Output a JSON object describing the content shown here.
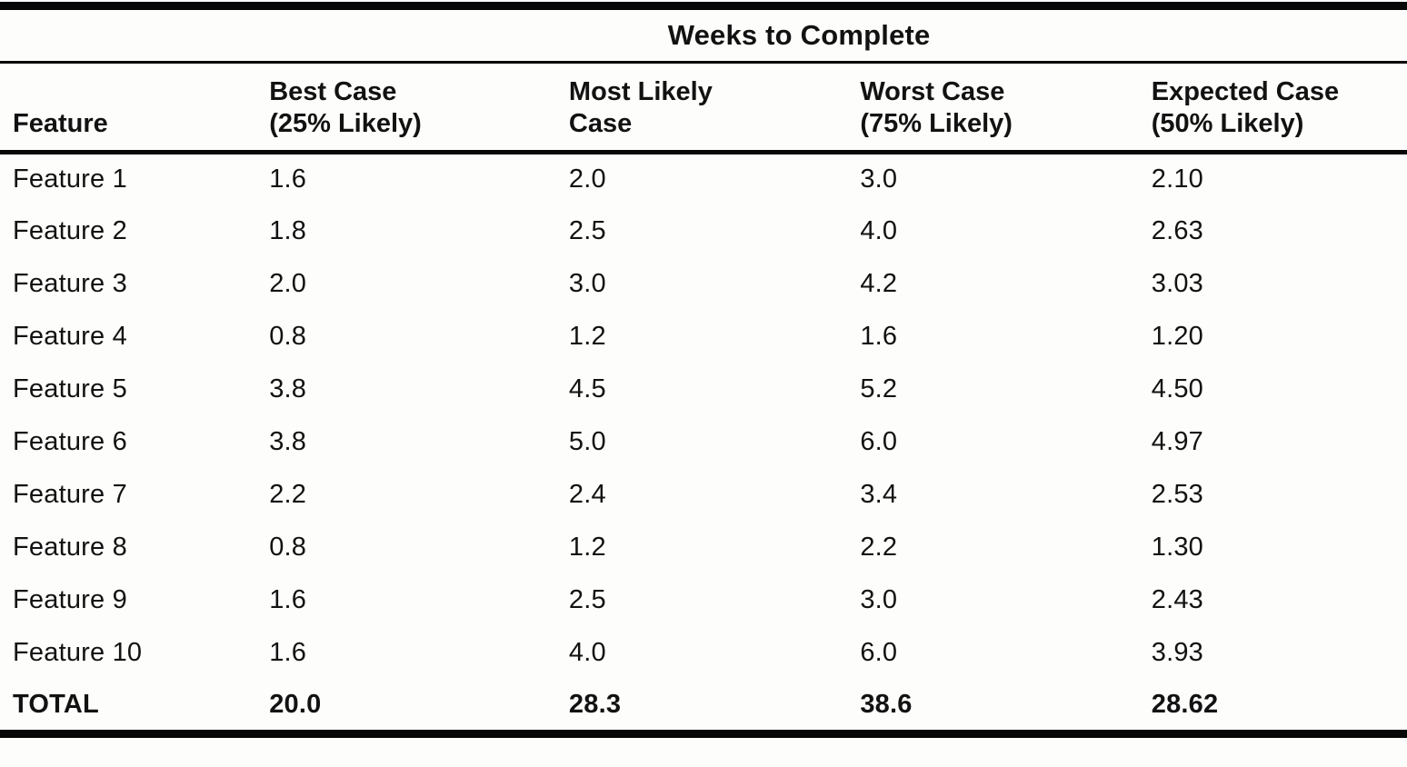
{
  "chart_data": {
    "type": "table",
    "title": "Weeks to Complete",
    "columns": [
      {
        "label": "Feature",
        "sub": ""
      },
      {
        "label": "Best Case",
        "sub": "(25% Likely)"
      },
      {
        "label": "Most Likely",
        "sub": "Case"
      },
      {
        "label": "Worst Case",
        "sub": "(75% Likely)"
      },
      {
        "label": "Expected Case",
        "sub": "(50% Likely)"
      }
    ],
    "rows": [
      [
        "Feature 1",
        "1.6",
        "2.0",
        "3.0",
        "2.10"
      ],
      [
        "Feature 2",
        "1.8",
        "2.5",
        "4.0",
        "2.63"
      ],
      [
        "Feature 3",
        "2.0",
        "3.0",
        "4.2",
        "3.03"
      ],
      [
        "Feature 4",
        "0.8",
        "1.2",
        "1.6",
        "1.20"
      ],
      [
        "Feature 5",
        "3.8",
        "4.5",
        "5.2",
        "4.50"
      ],
      [
        "Feature 6",
        "3.8",
        "5.0",
        "6.0",
        "4.97"
      ],
      [
        "Feature 7",
        "2.2",
        "2.4",
        "3.4",
        "2.53"
      ],
      [
        "Feature 8",
        "0.8",
        "1.2",
        "2.2",
        "1.30"
      ],
      [
        "Feature 9",
        "1.6",
        "2.5",
        "3.0",
        "2.43"
      ],
      [
        "Feature 10",
        "1.6",
        "4.0",
        "6.0",
        "3.93"
      ]
    ],
    "total_row": [
      "TOTAL",
      "20.0",
      "28.3",
      "38.6",
      "28.62"
    ]
  },
  "colors": {
    "background": "#fdfdfb",
    "text": "#121212",
    "rule": "#070707"
  }
}
